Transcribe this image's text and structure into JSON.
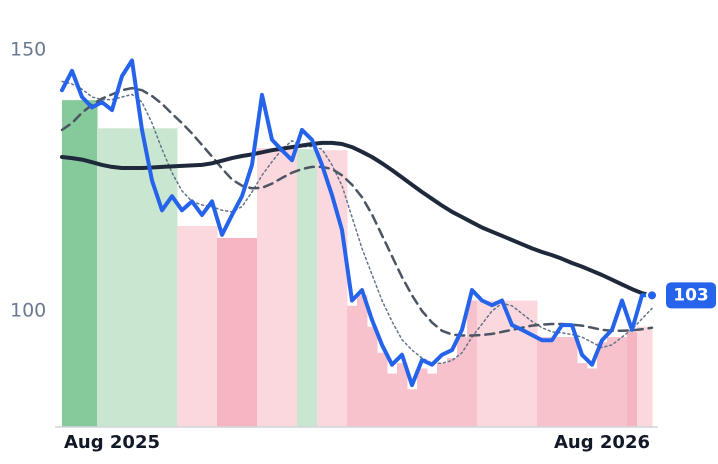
{
  "chart_data": {
    "type": "line",
    "categories": [
      null,
      null,
      null,
      null,
      null,
      "Aug 2025",
      null,
      null,
      null,
      null,
      null,
      null,
      null,
      null,
      null,
      null,
      null,
      null,
      null,
      null,
      null,
      null,
      null,
      null,
      null,
      null,
      null,
      null,
      null,
      null,
      null,
      null,
      null,
      null,
      null,
      null,
      null,
      null,
      null,
      null,
      null,
      null,
      null,
      null,
      null,
      null,
      null,
      null,
      null,
      null,
      null,
      null,
      null,
      null,
      "Aug 2026",
      null,
      null,
      null,
      null,
      null
    ],
    "ylim": [
      78,
      152
    ],
    "yticks": [
      100,
      150
    ],
    "series": [
      {
        "color": "#2563eb",
        "width": 4,
        "dash": "none",
        "values": [
          142.3,
          146,
          141,
          139,
          140,
          138.5,
          145,
          148,
          134.7,
          125,
          119.3,
          122,
          119.3,
          121,
          118.4,
          121,
          114.6,
          118.4,
          122,
          128,
          141.4,
          132.8,
          130.8,
          128.9,
          134.7,
          132.8,
          128,
          122.2,
          115.5,
          102,
          104,
          98.3,
          93.5,
          89.7,
          91.6,
          85.8,
          90.6,
          89.7,
          91.6,
          92.5,
          96.4,
          104,
          102,
          101.1,
          102,
          97.3,
          96.4,
          95.4,
          94.4,
          94.4,
          97.3,
          97.3,
          91.6,
          89.7,
          94.4,
          96.4,
          102,
          96.4,
          103,
          103
        ]
      },
      {
        "color": "#1e293b",
        "width": 4,
        "dash": "none",
        "values": [
          129.5,
          129.3,
          129,
          128.5,
          128,
          127.6,
          127.4,
          127.4,
          127.4,
          127.5,
          127.6,
          127.7,
          127.8,
          127.9,
          128,
          128.3,
          128.8,
          129.3,
          129.7,
          130,
          130.4,
          130.8,
          131.1,
          131.4,
          131.7,
          132,
          132.2,
          132.2,
          132,
          131.4,
          130.5,
          129.5,
          128.3,
          127,
          125.6,
          124.2,
          122.8,
          121.5,
          120.2,
          119,
          118,
          117,
          116,
          115.2,
          114.4,
          113.6,
          112.8,
          112,
          111.3,
          110.7,
          110,
          109.2,
          108.5,
          107.7,
          106.9,
          106,
          105.1,
          104.2,
          103.4,
          103
        ]
      },
      {
        "color": "#4b5563",
        "width": 2.5,
        "dash": "9 6",
        "values": [
          134.7,
          136,
          138,
          139.5,
          140.7,
          141.5,
          142.3,
          142.7,
          142.3,
          141.2,
          139.7,
          137.8,
          136,
          134,
          131.8,
          129.6,
          127.3,
          125.2,
          124,
          123.5,
          123.6,
          124.4,
          125.5,
          126.5,
          127.2,
          127.6,
          127.6,
          127.2,
          126,
          124.2,
          121.8,
          118.5,
          114.5,
          110.5,
          106.5,
          103,
          100,
          97.8,
          96.2,
          95.5,
          95.3,
          95.3,
          95.4,
          95.6,
          96,
          96.4,
          96.8,
          97.2,
          97.4,
          97.5,
          97.5,
          97.4,
          97.2,
          96.8,
          96.4,
          96.2,
          96.2,
          96.3,
          96.5,
          96.8
        ]
      },
      {
        "color": "#64748b",
        "width": 1.5,
        "dash": "2 3",
        "values": [
          144,
          143.5,
          142.5,
          141,
          140.5,
          140.5,
          141,
          141.5,
          140,
          136,
          131,
          126.5,
          123,
          121,
          120.3,
          120,
          119.3,
          119,
          120,
          122.8,
          126,
          128.6,
          131,
          132.6,
          131.5,
          131.5,
          131,
          128,
          124,
          118,
          112,
          107,
          102,
          98,
          94.5,
          92.5,
          91,
          90,
          90,
          90.5,
          92,
          95,
          97.5,
          100,
          101.5,
          101,
          99.5,
          98,
          96.8,
          96,
          95.8,
          95.5,
          95,
          94,
          93,
          93.5,
          95,
          96.5,
          98.5,
          100.5
        ]
      }
    ],
    "bars": {
      "values": [
        140.4,
        140.4,
        140.4,
        140.4,
        135,
        135,
        135,
        135,
        135,
        135,
        135,
        135,
        116.3,
        116.3,
        116.3,
        116.3,
        114,
        114,
        114,
        114,
        131.2,
        131.2,
        131.2,
        131.2,
        131,
        131,
        130.8,
        130.8,
        130.8,
        101,
        103,
        97,
        92,
        88,
        90,
        85,
        89,
        88,
        90,
        91,
        95,
        102,
        102,
        102,
        102,
        102,
        102,
        102,
        95,
        95,
        95,
        95,
        90,
        89,
        94,
        95,
        95,
        96,
        97,
        97
      ],
      "colors": [
        "#86c99a",
        "#86c99a",
        "#86c99a",
        "#86c99a",
        "#c8e6d0",
        "#c8e6d0",
        "#c8e6d0",
        "#c8e6d0",
        "#c8e6d0",
        "#c8e6d0",
        "#c8e6d0",
        "#c8e6d0",
        "#fbd7de",
        "#fbd7de",
        "#fbd7de",
        "#fbd7de",
        "#f6b6c1",
        "#f6b6c1",
        "#f6b6c1",
        "#f6b6c1",
        "#fbd7de",
        "#fbd7de",
        "#fbd7de",
        "#fbd7de",
        "#c8e6d0",
        "#c8e6d0",
        "#fbd7de",
        "#fbd7de",
        "#fbd7de",
        "#f8c2cc",
        "#f8c2cc",
        "#f8c2cc",
        "#f8c2cc",
        "#f8c2cc",
        "#f8c2cc",
        "#f8c2cc",
        "#f8c2cc",
        "#f8c2cc",
        "#f8c2cc",
        "#f8c2cc",
        "#f8c2cc",
        "#f8c2cc",
        "#fbd7de",
        "#fbd7de",
        "#fbd7de",
        "#fbd7de",
        "#fbd7de",
        "#fbd7de",
        "#f8c2cc",
        "#f8c2cc",
        "#f8c2cc",
        "#f8c2cc",
        "#f8c2cc",
        "#f8c2cc",
        "#f8c2cc",
        "#f8c2cc",
        "#f8c2cc",
        "#f6b6c1",
        "#fbd7de",
        "#fbd7de"
      ]
    }
  }
}
